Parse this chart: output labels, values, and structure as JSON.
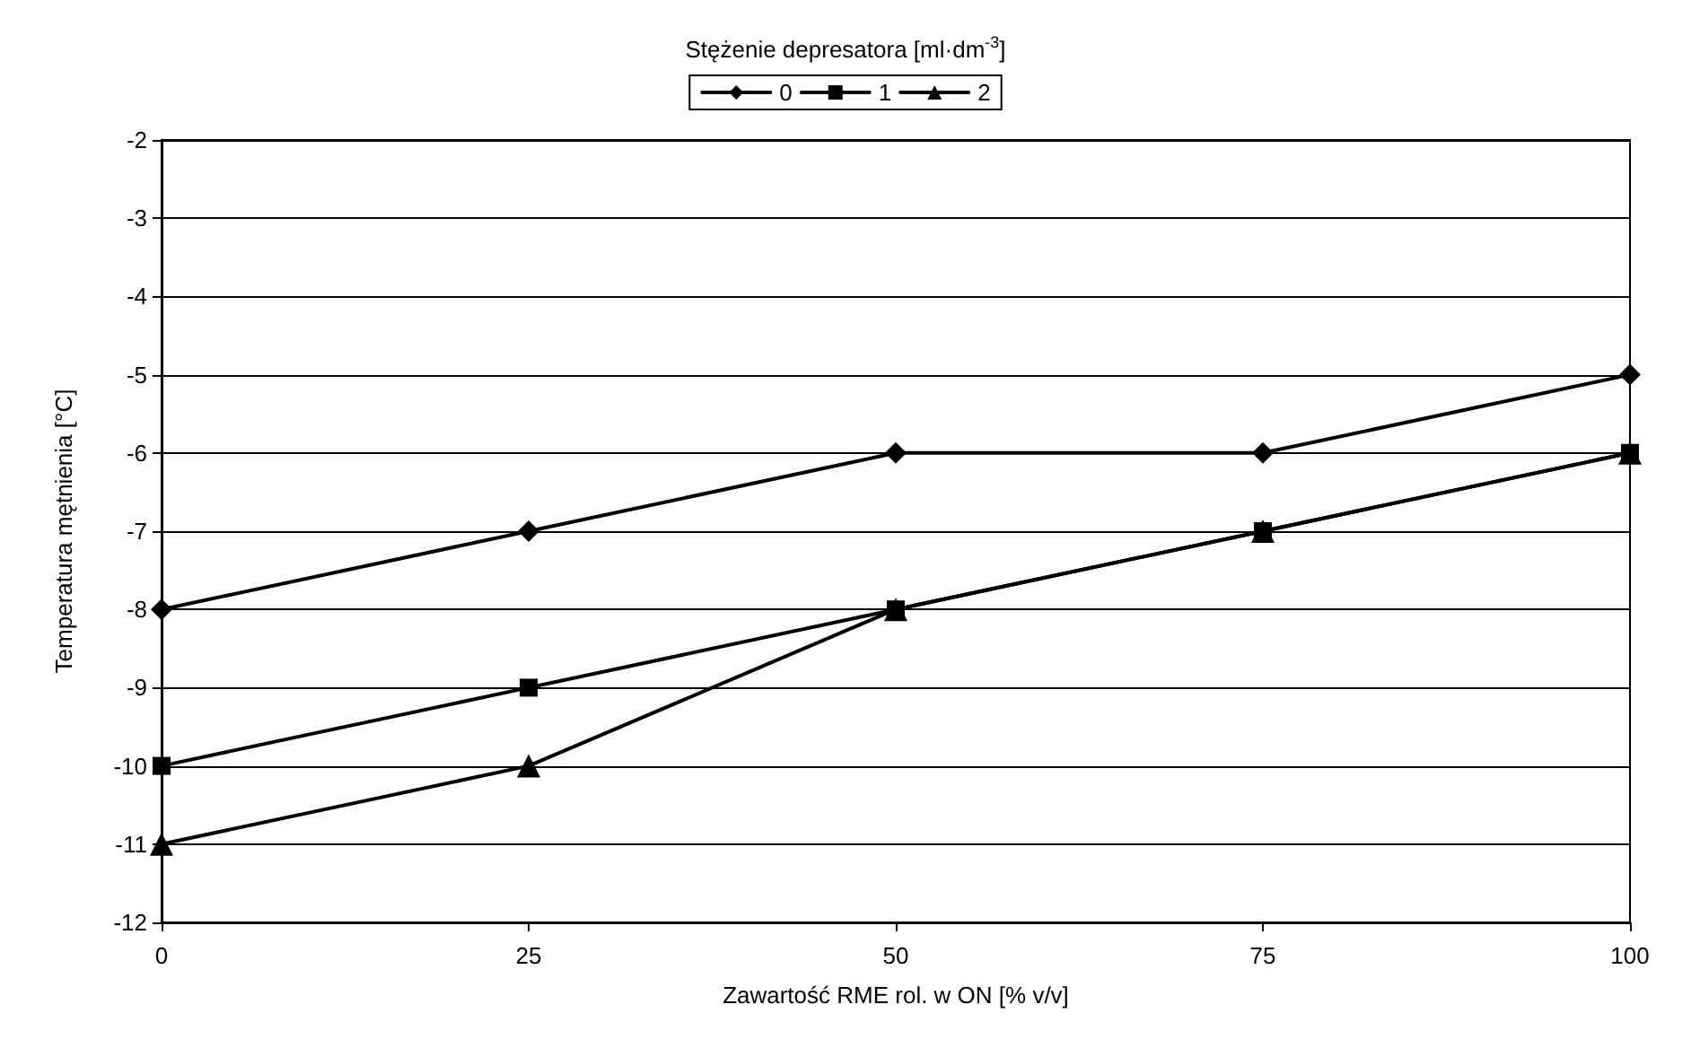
{
  "chart_data": {
    "type": "line",
    "legend_title": "Stężenie depresatora [ml·dm$^{-3}$]",
    "xlabel": "Zawartość RME rol. w ON [% v/v]",
    "ylabel": "Temperatura mętnienia [°C]",
    "x": [
      0,
      25,
      50,
      75,
      100
    ],
    "series": [
      {
        "name": "0",
        "color": "#000000",
        "marker": "diamond",
        "values": [
          -8,
          -7,
          -6,
          -6,
          -5
        ]
      },
      {
        "name": "1",
        "color": "#000000",
        "marker": "square",
        "values": [
          -10,
          -9,
          -8,
          -7,
          -6
        ]
      },
      {
        "name": "2",
        "color": "#000000",
        "marker": "triangle",
        "values": [
          -11,
          -10,
          -8,
          -7,
          -6
        ]
      }
    ],
    "xlim": [
      0,
      100
    ],
    "xticks": [
      0,
      25,
      50,
      75,
      100
    ],
    "ylim": [
      -12,
      -2
    ],
    "yticks": [
      -12,
      -11,
      -10,
      -9,
      -8,
      -7,
      -6,
      -5,
      -4,
      -3,
      -2
    ],
    "grid": "y",
    "legend": "top",
    "line_style": "solid"
  }
}
